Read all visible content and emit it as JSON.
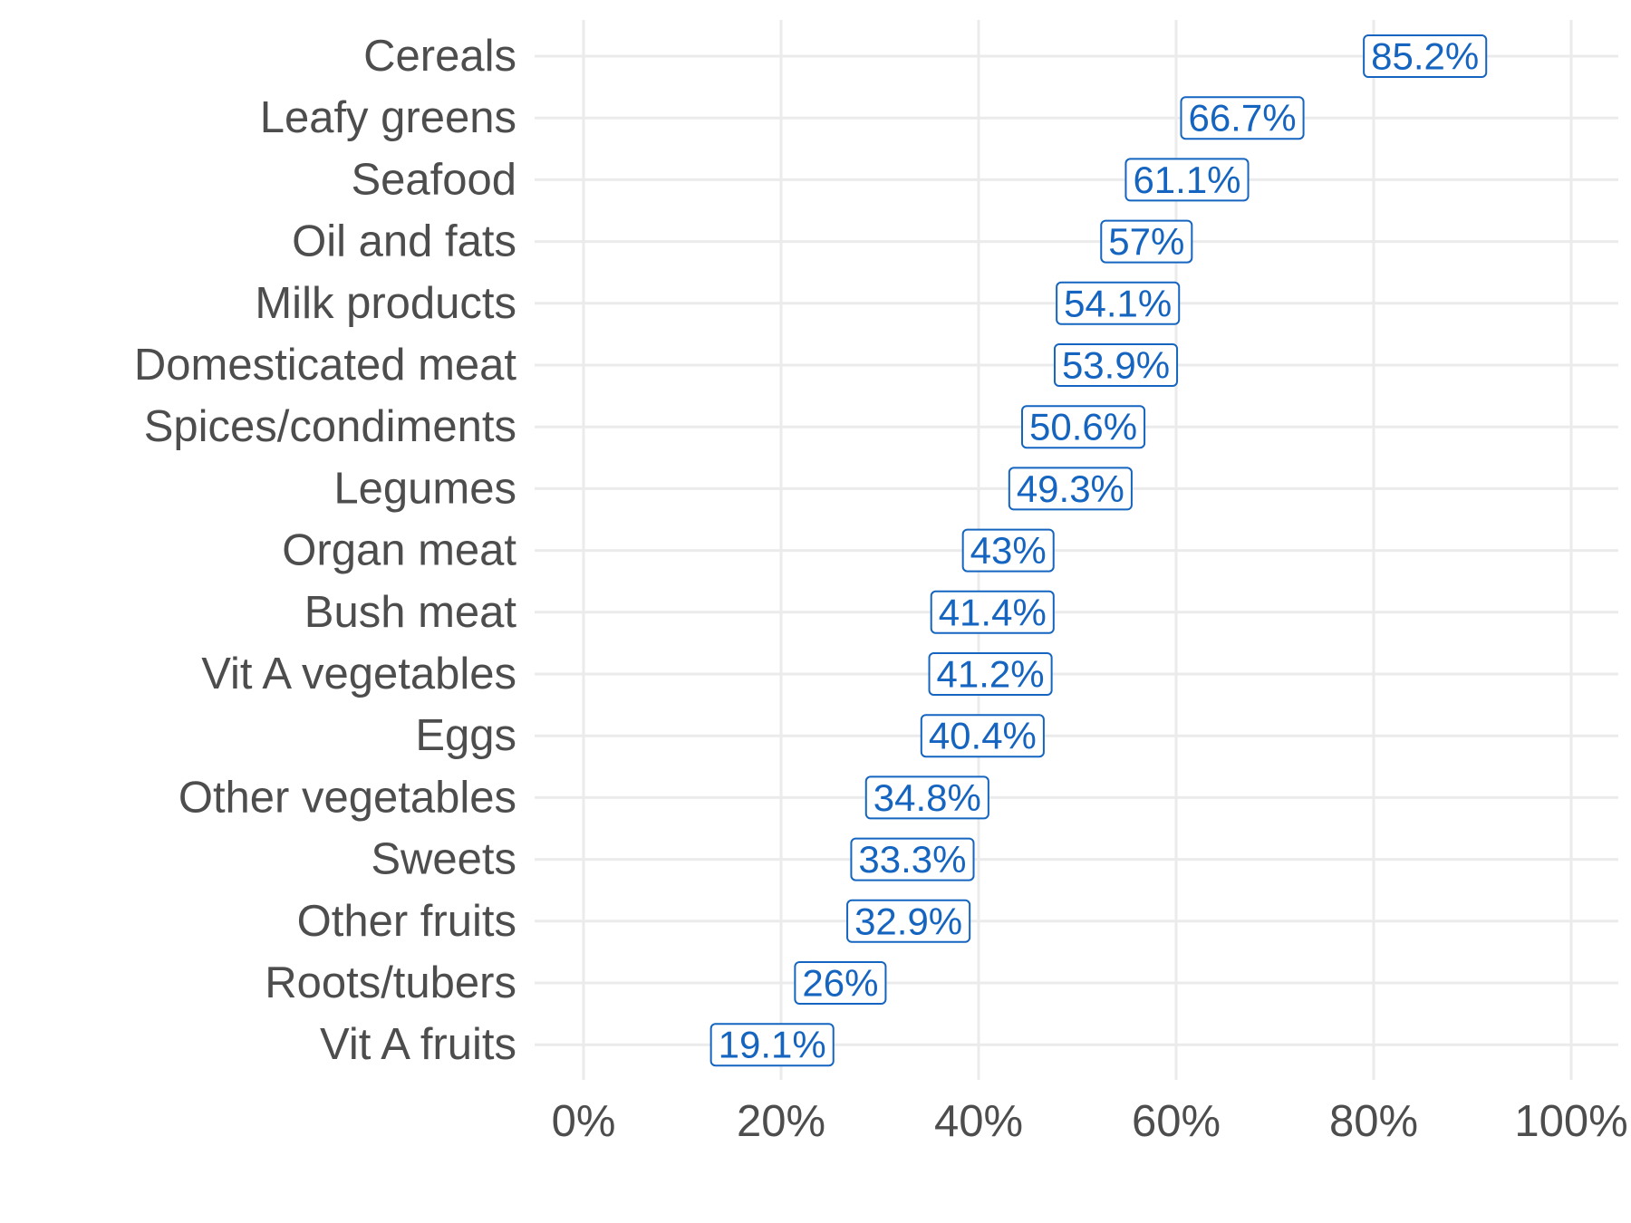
{
  "chart_data": {
    "type": "scatter",
    "title": "",
    "xlabel": "",
    "ylabel": "",
    "categories": [
      "Cereals",
      "Leafy greens",
      "Seafood",
      "Oil and fats",
      "Milk products",
      "Domesticated meat",
      "Spices/condiments",
      "Legumes",
      "Organ meat",
      "Bush meat",
      "Vit A vegetables",
      "Eggs",
      "Other vegetables",
      "Sweets",
      "Other fruits",
      "Roots/tubers",
      "Vit A fruits"
    ],
    "values": [
      85.2,
      66.7,
      61.1,
      57,
      54.1,
      53.9,
      50.6,
      49.3,
      43,
      41.4,
      41.2,
      40.4,
      34.8,
      33.3,
      32.9,
      26,
      19.1
    ],
    "value_labels": [
      "85.2%",
      "66.7%",
      "61.1%",
      "57%",
      "54.1%",
      "53.9%",
      "50.6%",
      "49.3%",
      "43%",
      "41.4%",
      "41.2%",
      "40.4%",
      "34.8%",
      "33.3%",
      "32.9%",
      "26%",
      "19.1%"
    ],
    "xlim": [
      0,
      100
    ],
    "x_ticks": [
      0,
      20,
      40,
      60,
      80,
      100
    ],
    "x_tick_labels": [
      "0%",
      "20%",
      "40%",
      "60%",
      "80%",
      "100%"
    ],
    "grid": true,
    "legend": "none",
    "colors": {
      "label": "#1565c0",
      "grid": "#ebebeb",
      "text": "#4d4d4d"
    }
  }
}
